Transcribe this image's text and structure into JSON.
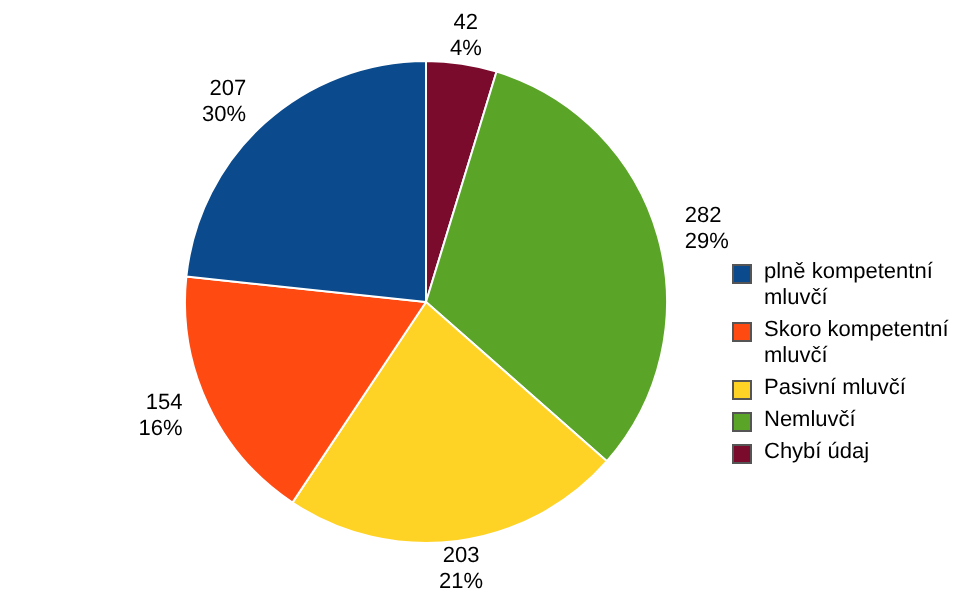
{
  "chart_data": {
    "type": "pie",
    "categories": [
      "plně kompetentní mluvčí",
      "Skoro kompetentní mluvčí",
      "Pasivní mluvčí",
      "Nemluvčí",
      "Chybí údaj"
    ],
    "values": [
      207,
      154,
      203,
      282,
      42
    ],
    "colors": [
      "#0b4a8c",
      "#ff4b12",
      "#ffd226",
      "#5aa428",
      "#7a0b2c"
    ],
    "value_labels": [
      "207\n30%",
      "154\n16%",
      "203\n21%",
      "282\n29%",
      "42\n4%"
    ],
    "legend": "right"
  }
}
